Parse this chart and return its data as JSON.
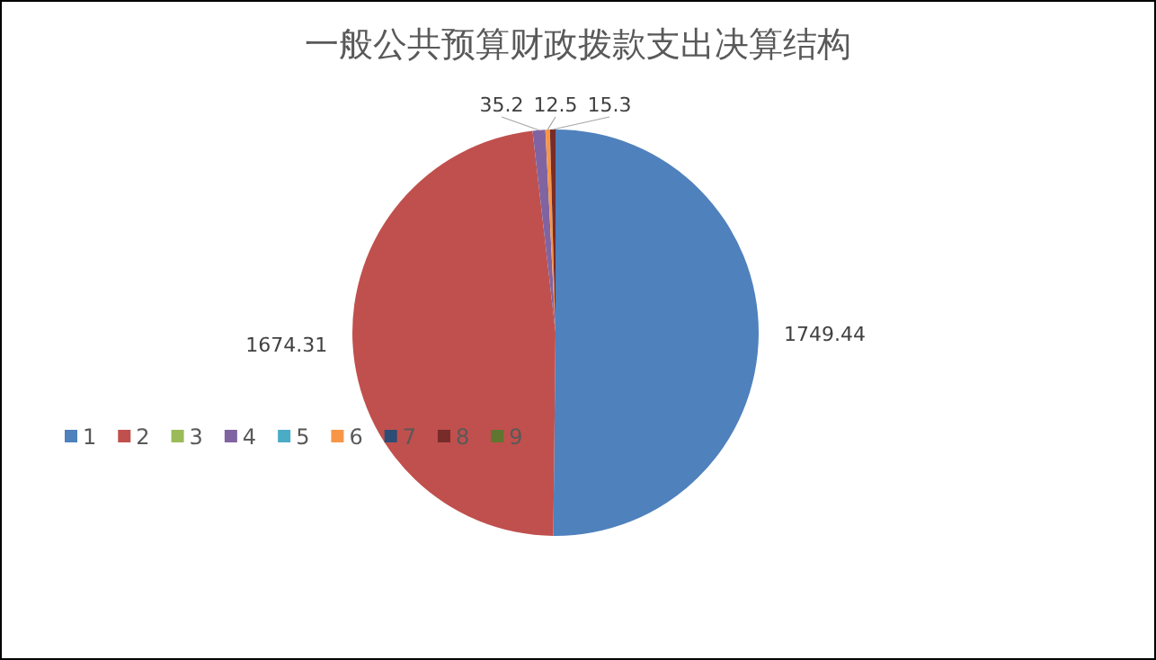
{
  "chart_data": {
    "type": "pie",
    "title": "一般公共预算财政拨款支出决算结构",
    "categories": [
      "1",
      "2",
      "3",
      "4",
      "5",
      "6",
      "7",
      "8",
      "9"
    ],
    "values": [
      1749.44,
      1674.31,
      0,
      35.2,
      0,
      12.5,
      0,
      15.3,
      0
    ],
    "colors": [
      "#4f81bd",
      "#c0504d",
      "#9bbb59",
      "#8064a2",
      "#4bacc6",
      "#f79646",
      "#2c4d75",
      "#772c2a",
      "#5f7530"
    ],
    "data_labels": true,
    "legend": "left"
  }
}
